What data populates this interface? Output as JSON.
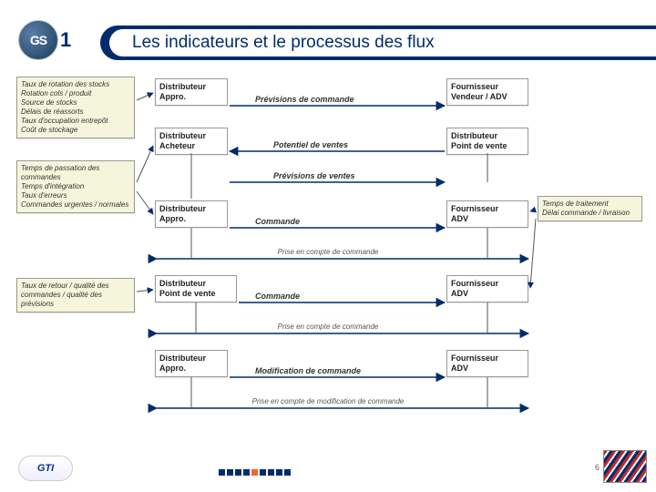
{
  "header": {
    "title": "Les indicateurs et le processus des flux"
  },
  "logos": {
    "gs1_text": "1",
    "gs1_letters": "GS",
    "gti": "GTI"
  },
  "colors": {
    "brand_navy": "#002c6c",
    "brand_orange": "#f26334",
    "note_bg": "#f5f5dc",
    "arrow": "#002c6c"
  },
  "notes": {
    "left1": "Taux de rotation des stocks\nRotation cols / produit\nSource de stocks\nDélais de réassorts\nTaux d'occupation entrepôt\nCoût de stockage",
    "left2": "Temps de passation des commandes\nTemps d'intégration\nTaux d'erreurs\nCommandes urgentes / normales",
    "left3": "Taux de retour / qualité des commandes / qualité des prévisions",
    "right1": "Temps de traitement\nDélai commande / livraison"
  },
  "actors": {
    "r1_left": "Distributeur\nAppro.",
    "r1_right": "Fournisseur\nVendeur / ADV",
    "r2_left": "Distributeur\nAcheteur",
    "r2_right": "Distributeur\nPoint de vente",
    "r3_left": "Distributeur\nAppro.",
    "r3_right": "Fournisseur\nADV",
    "r4_left": "Distributeur\nPoint de vente",
    "r4_right": "Fournisseur\nADV",
    "r5_left": "Distributeur\nAppro.",
    "r5_right": "Fournisseur\nADV"
  },
  "flows": {
    "f1": "Prévisions de commande",
    "f2a": "Potentiel de ventes",
    "f2b": "Prévisions de ventes",
    "f3": "Commande",
    "m3": "Prise en compte de commande",
    "f4": "Commande",
    "m4": "Prise en compte de commande",
    "f5": "Modification de commande",
    "m5": "Prise en compte de modification de commande"
  },
  "page_number": "6"
}
